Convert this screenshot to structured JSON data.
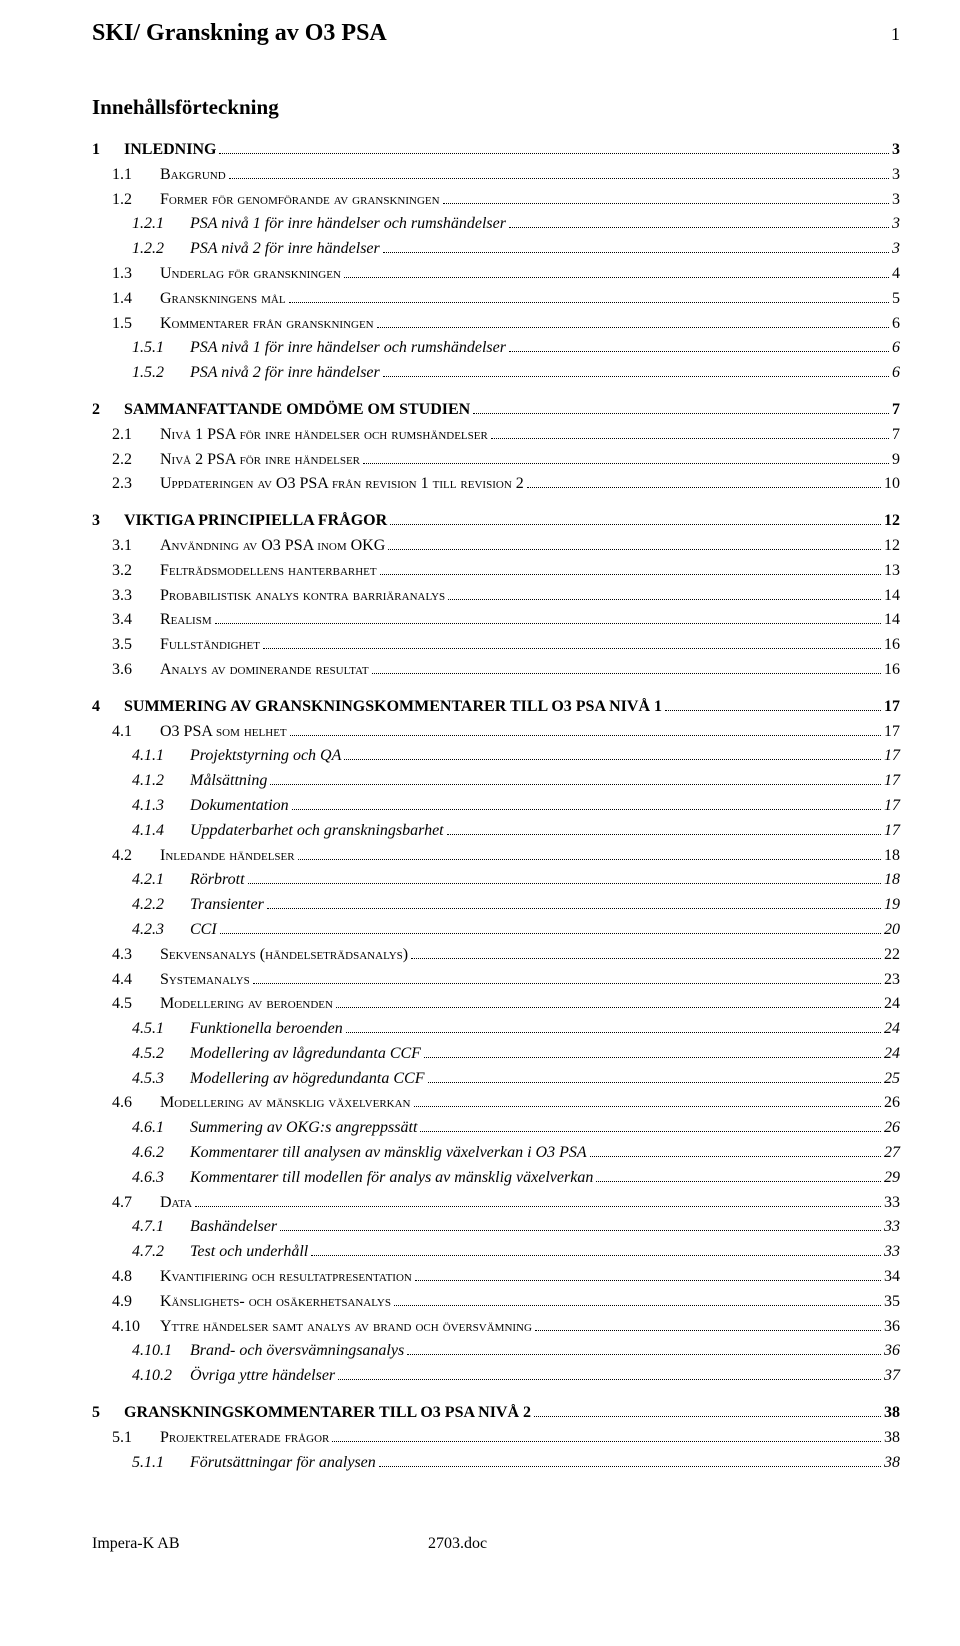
{
  "header": {
    "doc_title": "SKI/ Granskning av O3 PSA",
    "page_number": "1"
  },
  "toc_heading": "Innehållsförteckning",
  "toc": [
    {
      "lvl": "chapter",
      "num": "1",
      "label": "INLEDNING",
      "page": "3"
    },
    {
      "lvl": "section",
      "num": "1.1",
      "label": "Bakgrund",
      "page": "3"
    },
    {
      "lvl": "section",
      "num": "1.2",
      "label": "Former för genomförande av granskningen",
      "page": "3"
    },
    {
      "lvl": "sub",
      "num": "1.2.1",
      "label": "PSA nivå 1 för inre händelser och rumshändelser",
      "page": "3"
    },
    {
      "lvl": "sub",
      "num": "1.2.2",
      "label": "PSA nivå 2 för inre händelser",
      "page": "3"
    },
    {
      "lvl": "section",
      "num": "1.3",
      "label": "Underlag för granskningen",
      "page": "4"
    },
    {
      "lvl": "section",
      "num": "1.4",
      "label": "Granskningens mål",
      "page": "5"
    },
    {
      "lvl": "section",
      "num": "1.5",
      "label": "Kommentarer från granskningen",
      "page": "6"
    },
    {
      "lvl": "sub",
      "num": "1.5.1",
      "label": "PSA nivå 1 för inre händelser och rumshändelser",
      "page": "6"
    },
    {
      "lvl": "sub",
      "num": "1.5.2",
      "label": "PSA nivå 2 för inre händelser",
      "page": "6"
    },
    {
      "lvl": "chapter",
      "num": "2",
      "label": "SAMMANFATTANDE OMDÖME OM STUDIEN",
      "page": "7"
    },
    {
      "lvl": "section",
      "num": "2.1",
      "label": "Nivå 1 PSA för inre händelser och rumshändelser",
      "page": "7"
    },
    {
      "lvl": "section",
      "num": "2.2",
      "label": "Nivå 2 PSA för inre händelser",
      "page": "9"
    },
    {
      "lvl": "section",
      "num": "2.3",
      "label": "Uppdateringen av O3 PSA från revision 1 till revision 2",
      "page": "10"
    },
    {
      "lvl": "chapter",
      "num": "3",
      "label": "VIKTIGA PRINCIPIELLA FRÅGOR",
      "page": "12"
    },
    {
      "lvl": "section",
      "num": "3.1",
      "label": "Användning av O3 PSA inom OKG",
      "page": "12"
    },
    {
      "lvl": "section",
      "num": "3.2",
      "label": "Felträdsmodellens hanterbarhet",
      "page": "13"
    },
    {
      "lvl": "section",
      "num": "3.3",
      "label": "Probabilistisk analys kontra barriäranalys",
      "page": "14"
    },
    {
      "lvl": "section",
      "num": "3.4",
      "label": "Realism",
      "page": "14"
    },
    {
      "lvl": "section",
      "num": "3.5",
      "label": "Fullständighet",
      "page": "16"
    },
    {
      "lvl": "section",
      "num": "3.6",
      "label": "Analys av dominerande resultat",
      "page": "16"
    },
    {
      "lvl": "chapter",
      "num": "4",
      "label": "SUMMERING AV GRANSKNINGSKOMMENTARER TILL O3 PSA NIVÅ 1",
      "page": "17"
    },
    {
      "lvl": "section",
      "num": "4.1",
      "label": "O3 PSA som helhet",
      "page": "17"
    },
    {
      "lvl": "sub",
      "num": "4.1.1",
      "label": "Projektstyrning och QA",
      "page": "17"
    },
    {
      "lvl": "sub",
      "num": "4.1.2",
      "label": "Målsättning",
      "page": "17"
    },
    {
      "lvl": "sub",
      "num": "4.1.3",
      "label": "Dokumentation",
      "page": "17"
    },
    {
      "lvl": "sub",
      "num": "4.1.4",
      "label": "Uppdaterbarhet och granskningsbarhet",
      "page": "17"
    },
    {
      "lvl": "section",
      "num": "4.2",
      "label": "Inledande händelser",
      "page": "18"
    },
    {
      "lvl": "sub",
      "num": "4.2.1",
      "label": "Rörbrott",
      "page": "18"
    },
    {
      "lvl": "sub",
      "num": "4.2.2",
      "label": "Transienter",
      "page": "19"
    },
    {
      "lvl": "sub",
      "num": "4.2.3",
      "label": "CCI",
      "page": "20"
    },
    {
      "lvl": "section",
      "num": "4.3",
      "label": "Sekvensanalys (händelseträdsanalys)",
      "page": "22"
    },
    {
      "lvl": "section",
      "num": "4.4",
      "label": "Systemanalys",
      "page": "23"
    },
    {
      "lvl": "section",
      "num": "4.5",
      "label": "Modellering av beroenden",
      "page": "24"
    },
    {
      "lvl": "sub",
      "num": "4.5.1",
      "label": "Funktionella beroenden",
      "page": "24"
    },
    {
      "lvl": "sub",
      "num": "4.5.2",
      "label": "Modellering av lågredundanta CCF",
      "page": "24"
    },
    {
      "lvl": "sub",
      "num": "4.5.3",
      "label": "Modellering av högredundanta CCF",
      "page": "25"
    },
    {
      "lvl": "section",
      "num": "4.6",
      "label": "Modellering av mänsklig växelverkan",
      "page": "26"
    },
    {
      "lvl": "sub",
      "num": "4.6.1",
      "label": "Summering av OKG:s angreppssätt",
      "page": "26"
    },
    {
      "lvl": "sub",
      "num": "4.6.2",
      "label": "Kommentarer till analysen av mänsklig växelverkan i O3 PSA",
      "page": "27"
    },
    {
      "lvl": "sub",
      "num": "4.6.3",
      "label": "Kommentarer till modellen för analys av mänsklig växelverkan",
      "page": "29"
    },
    {
      "lvl": "section",
      "num": "4.7",
      "label": "Data",
      "page": "33"
    },
    {
      "lvl": "sub",
      "num": "4.7.1",
      "label": "Bashändelser",
      "page": "33"
    },
    {
      "lvl": "sub",
      "num": "4.7.2",
      "label": "Test och underhåll",
      "page": "33"
    },
    {
      "lvl": "section",
      "num": "4.8",
      "label": "Kvantifiering och resultatpresentation",
      "page": "34"
    },
    {
      "lvl": "section",
      "num": "4.9",
      "label": "Känslighets- och osäkerhetsanalys",
      "page": "35"
    },
    {
      "lvl": "section",
      "num": "4.10",
      "label": "Yttre händelser samt analys av brand och översvämning",
      "page": "36"
    },
    {
      "lvl": "sub",
      "num": "4.10.1",
      "label": "Brand- och översvämningsanalys",
      "page": "36"
    },
    {
      "lvl": "sub",
      "num": "4.10.2",
      "label": "Övriga yttre händelser",
      "page": "37"
    },
    {
      "lvl": "chapter",
      "num": "5",
      "label": "GRANSKNINGSKOMMENTARER TILL O3 PSA NIVÅ 2",
      "page": "38"
    },
    {
      "lvl": "section",
      "num": "5.1",
      "label": "Projektrelaterade frågor",
      "page": "38"
    },
    {
      "lvl": "sub",
      "num": "5.1.1",
      "label": "Förutsättningar för analysen",
      "page": "38"
    }
  ],
  "footer": {
    "left": "Impera-K AB",
    "right": "2703.doc"
  }
}
